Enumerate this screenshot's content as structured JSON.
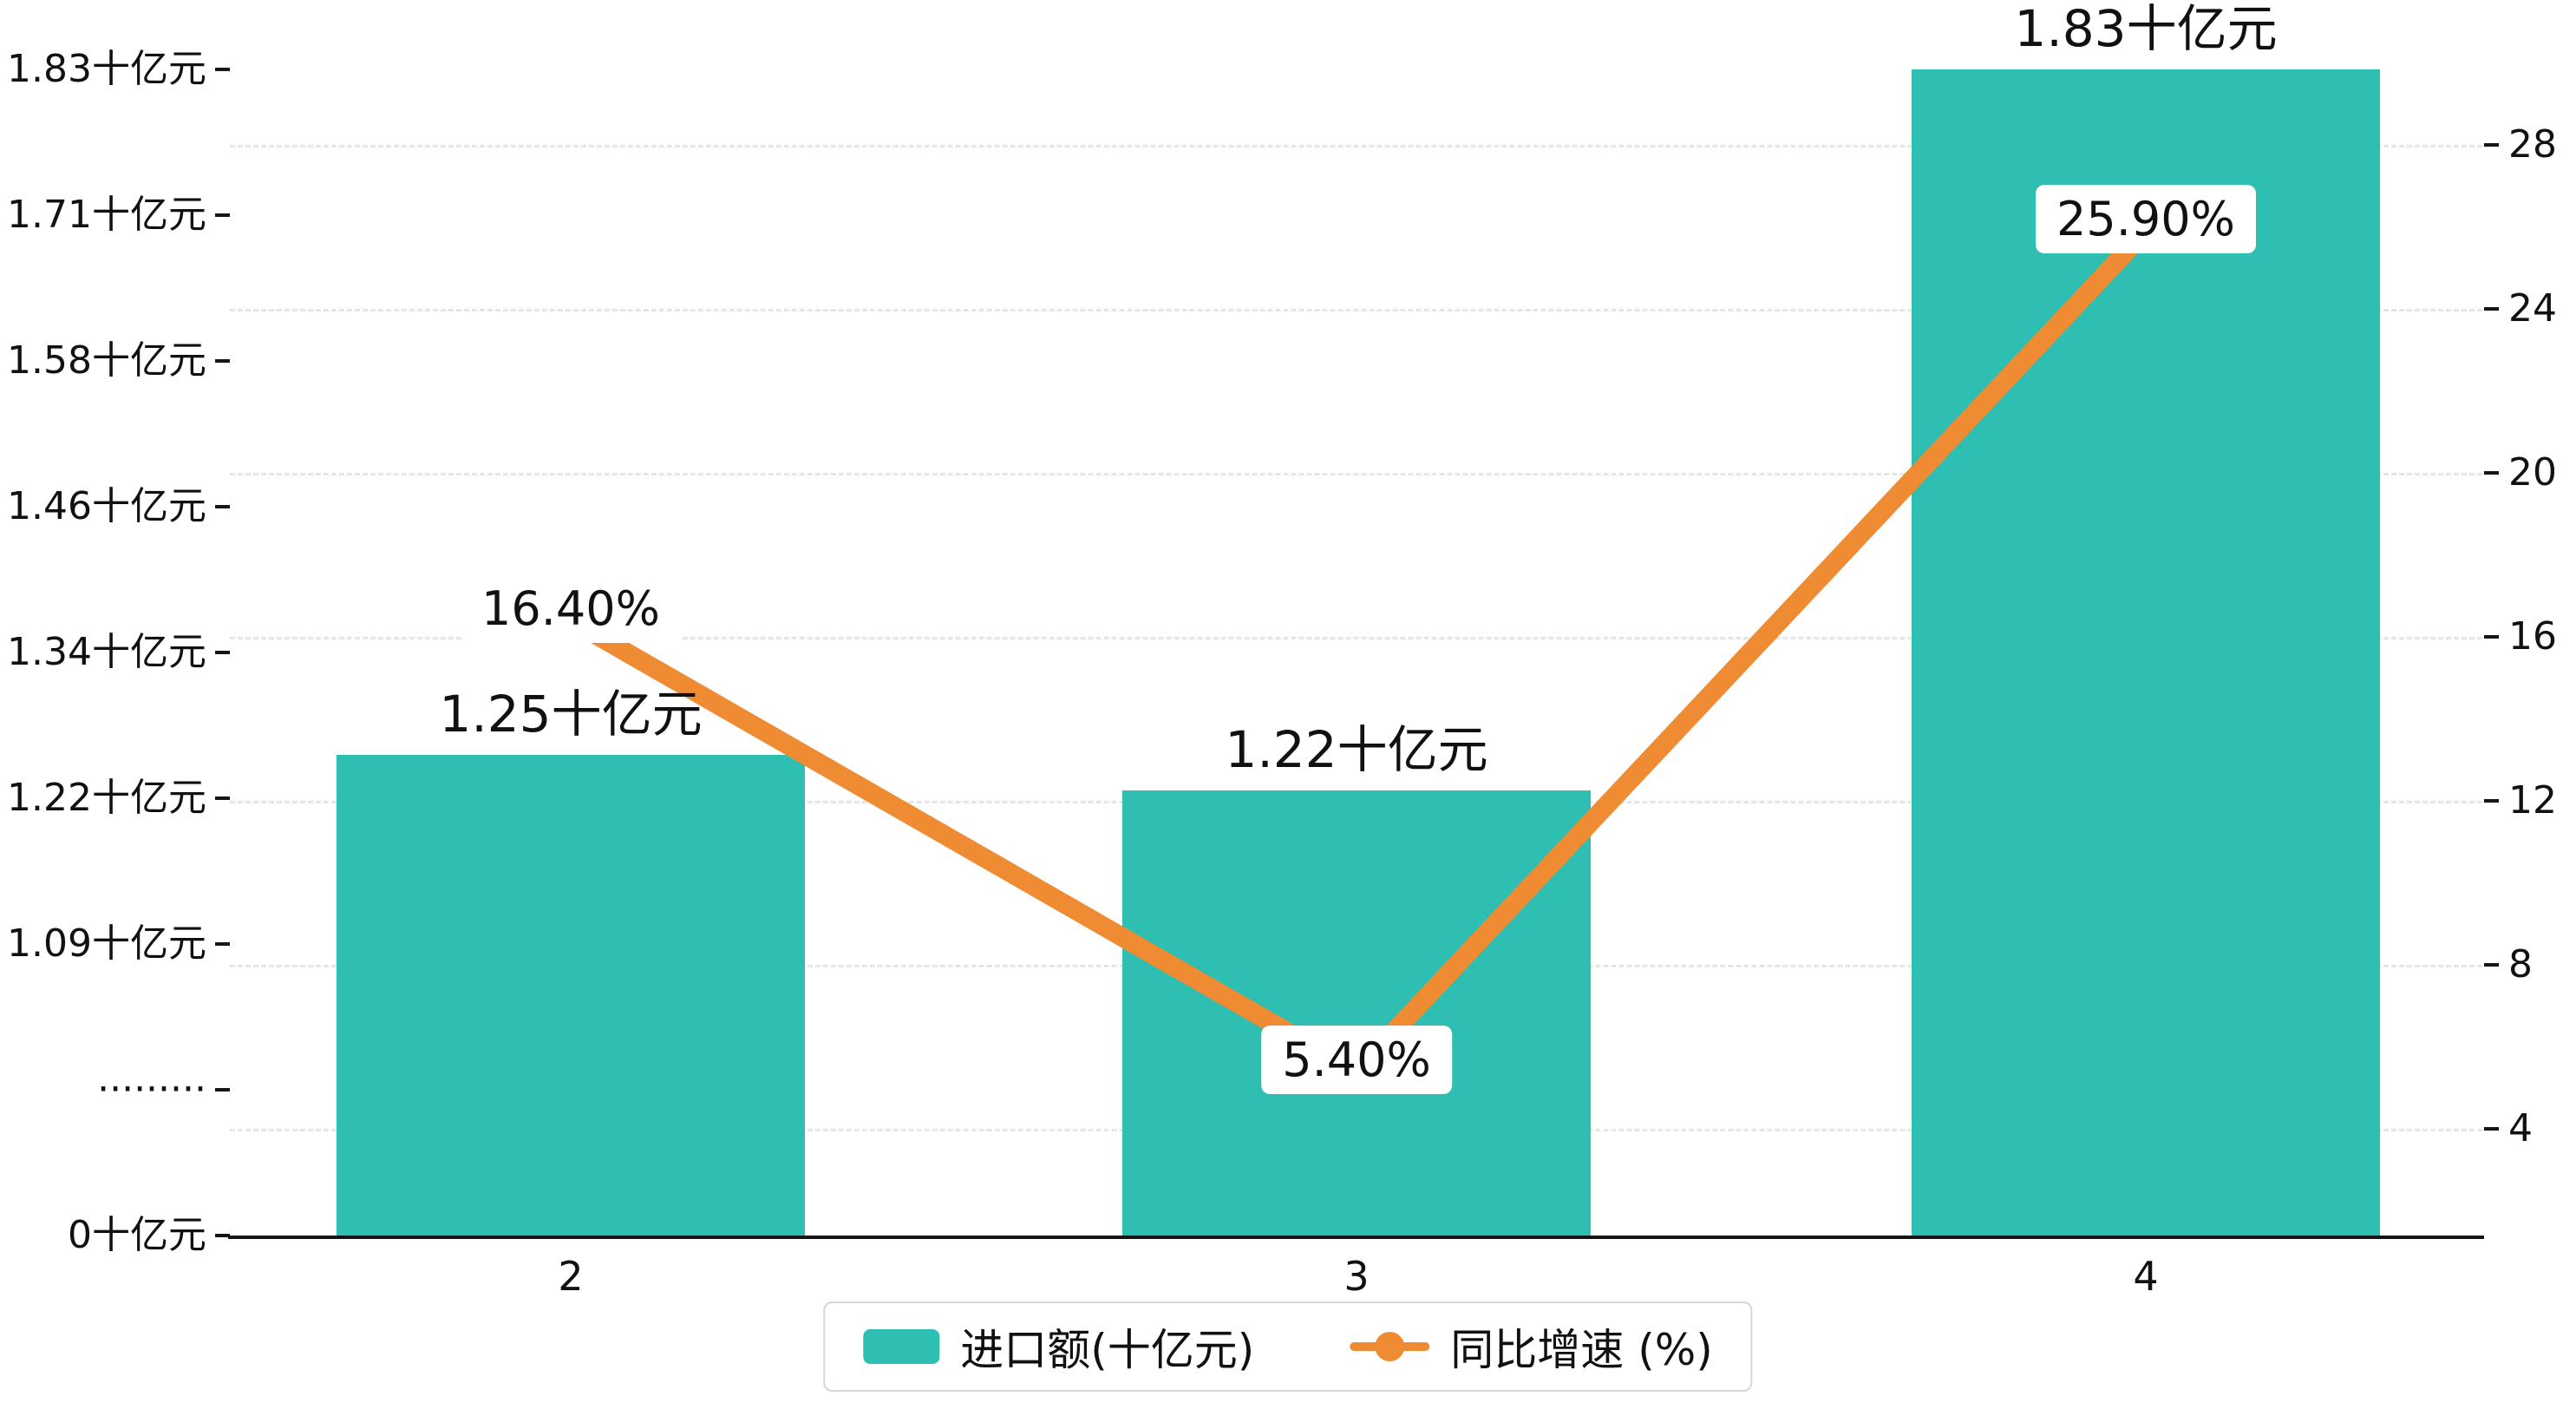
{
  "chart_data": {
    "type": "bar",
    "combo": "bar+line dual axis",
    "categories": [
      "2",
      "3",
      "4"
    ],
    "series": [
      {
        "name": "进口额(十亿元)",
        "type": "bar",
        "axis": "left",
        "values": [
          1.25,
          1.22,
          1.83
        ],
        "value_labels": [
          "1.25十亿元",
          "1.22十亿元",
          "1.83十亿元"
        ],
        "color": "#2EBEB2"
      },
      {
        "name": "同比增速 (%)",
        "type": "line",
        "axis": "right",
        "values": [
          16.4,
          5.4,
          25.9
        ],
        "value_labels": [
          "16.40%",
          "5.40%",
          "25.90%"
        ],
        "color": "#EE8B33"
      }
    ],
    "left_axis": {
      "unit": "十亿元",
      "tick_labels": [
        "0十亿元",
        "·········",
        "1.09十亿元",
        "1.22十亿元",
        "1.34十亿元",
        "1.46十亿元",
        "1.58十亿元",
        "1.71十亿元",
        "1.83十亿元"
      ],
      "break_between": [
        0,
        1.09
      ],
      "anchor_low_value": 1.09,
      "anchor_high_value": 1.83
    },
    "right_axis": {
      "tick_labels": [
        "4",
        "8",
        "12",
        "16",
        "20",
        "24",
        "28"
      ],
      "min": 4,
      "max": 28,
      "step": 4
    },
    "legend": {
      "items": [
        {
          "label": "进口额(十亿元)",
          "marker": "bar-swatch"
        },
        {
          "label": "同比增速 (%)",
          "marker": "line-dot"
        }
      ],
      "position": "bottom-center"
    },
    "grid": {
      "horizontal": true,
      "style": "dashed"
    },
    "title": ""
  },
  "colors": {
    "bar": "#2EBEB2",
    "line": "#EE8B33",
    "text": "#111111",
    "axis": "#151515",
    "gridline": "#e6e6e6",
    "label_box_bg": "#ffffff"
  }
}
